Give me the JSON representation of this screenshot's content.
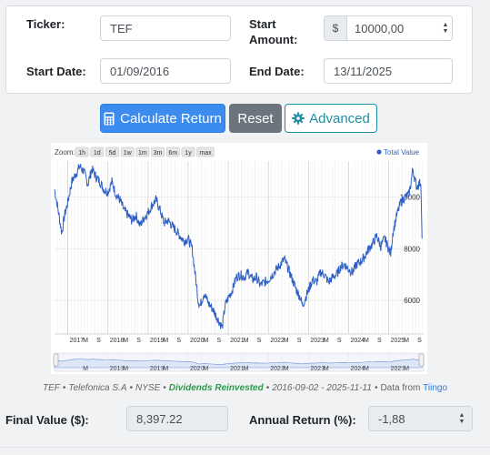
{
  "form": {
    "ticker_label": "Ticker:",
    "ticker_value": "TEF",
    "start_amount_label_line1": "Start",
    "start_amount_label_line2": "Amount:",
    "currency_symbol": "$",
    "start_amount_value": "10000,00",
    "start_date_label": "Start Date:",
    "start_date_value": "01/09/2016",
    "end_date_label": "End Date:",
    "end_date_value": "13/11/2025"
  },
  "buttons": {
    "calculate_label": "Calculate Return",
    "reset_label": "Reset",
    "advanced_label": "Advanced"
  },
  "chart_data": {
    "type": "line",
    "zoom_label": "Zoom:",
    "zoom_options": [
      "1h",
      "1d",
      "5d",
      "1w",
      "1m",
      "3m",
      "6m",
      "1y",
      "max"
    ],
    "legend": "Total Value",
    "legend_color": "#2f5fc4",
    "line_color": "#2f5fc4",
    "y_ticks": [
      6000,
      8000,
      10000
    ],
    "ylim": [
      4700,
      11400
    ],
    "xlim": [
      2016.67,
      2025.87
    ],
    "x_tick_labels": [
      {
        "label": "2017",
        "x": 2017.0,
        "bold": true
      },
      {
        "label": "M",
        "x": 2017.33
      },
      {
        "label": "S",
        "x": 2017.67
      },
      {
        "label": "2018",
        "x": 2018.0,
        "bold": true
      },
      {
        "label": "M",
        "x": 2018.33
      },
      {
        "label": "S",
        "x": 2018.67
      },
      {
        "label": "2019",
        "x": 2019.0,
        "bold": true
      },
      {
        "label": "M",
        "x": 2019.33
      },
      {
        "label": "S",
        "x": 2019.67
      },
      {
        "label": "2020",
        "x": 2020.0,
        "bold": true
      },
      {
        "label": "M",
        "x": 2020.33
      },
      {
        "label": "S",
        "x": 2020.67
      },
      {
        "label": "2021",
        "x": 2021.0,
        "bold": true
      },
      {
        "label": "M",
        "x": 2021.33
      },
      {
        "label": "S",
        "x": 2021.67
      },
      {
        "label": "2022",
        "x": 2022.0,
        "bold": true
      },
      {
        "label": "M",
        "x": 2022.33
      },
      {
        "label": "S",
        "x": 2022.67
      },
      {
        "label": "2023",
        "x": 2023.0,
        "bold": true
      },
      {
        "label": "M",
        "x": 2023.33
      },
      {
        "label": "S",
        "x": 2023.67
      },
      {
        "label": "2024",
        "x": 2024.0,
        "bold": true
      },
      {
        "label": "M",
        "x": 2024.33
      },
      {
        "label": "S",
        "x": 2024.67
      },
      {
        "label": "2025",
        "x": 2025.0,
        "bold": true
      },
      {
        "label": "M",
        "x": 2025.33
      },
      {
        "label": "S",
        "x": 2025.67
      }
    ],
    "navigator_labels": [
      {
        "label": "M",
        "x": 2017.33
      },
      {
        "label": "2018",
        "x": 2018.0
      },
      {
        "label": "M",
        "x": 2018.33
      },
      {
        "label": "2019",
        "x": 2019.0
      },
      {
        "label": "M",
        "x": 2019.33
      },
      {
        "label": "2020",
        "x": 2020.0
      },
      {
        "label": "M",
        "x": 2020.33
      },
      {
        "label": "2021",
        "x": 2021.0
      },
      {
        "label": "M",
        "x": 2021.33
      },
      {
        "label": "2022",
        "x": 2022.0
      },
      {
        "label": "M",
        "x": 2022.33
      },
      {
        "label": "2023",
        "x": 2023.0
      },
      {
        "label": "M",
        "x": 2023.33
      },
      {
        "label": "2024",
        "x": 2024.0
      },
      {
        "label": "M",
        "x": 2024.33
      },
      {
        "label": "2025",
        "x": 2025.0
      },
      {
        "label": "M",
        "x": 2025.33
      }
    ],
    "series": [
      {
        "points": [
          [
            2016.67,
            10300
          ],
          [
            2016.75,
            9600
          ],
          [
            2016.85,
            8600
          ],
          [
            2016.92,
            9300
          ],
          [
            2017.0,
            9800
          ],
          [
            2017.1,
            10600
          ],
          [
            2017.2,
            10900
          ],
          [
            2017.3,
            11200
          ],
          [
            2017.4,
            11000
          ],
          [
            2017.5,
            10500
          ],
          [
            2017.6,
            11100
          ],
          [
            2017.7,
            10800
          ],
          [
            2017.8,
            10600
          ],
          [
            2017.9,
            10300
          ],
          [
            2018.0,
            10200
          ],
          [
            2018.1,
            10600
          ],
          [
            2018.2,
            10100
          ],
          [
            2018.3,
            9900
          ],
          [
            2018.4,
            9500
          ],
          [
            2018.5,
            9300
          ],
          [
            2018.6,
            9100
          ],
          [
            2018.7,
            9300
          ],
          [
            2018.8,
            8900
          ],
          [
            2018.9,
            9200
          ],
          [
            2019.0,
            9400
          ],
          [
            2019.1,
            9700
          ],
          [
            2019.2,
            9900
          ],
          [
            2019.3,
            9500
          ],
          [
            2019.4,
            9000
          ],
          [
            2019.5,
            9100
          ],
          [
            2019.6,
            8900
          ],
          [
            2019.7,
            8700
          ],
          [
            2019.8,
            8500
          ],
          [
            2019.9,
            8300
          ],
          [
            2020.0,
            8400
          ],
          [
            2020.1,
            8000
          ],
          [
            2020.2,
            6700
          ],
          [
            2020.25,
            6000
          ],
          [
            2020.3,
            5800
          ],
          [
            2020.4,
            6300
          ],
          [
            2020.5,
            5900
          ],
          [
            2020.6,
            5700
          ],
          [
            2020.7,
            5400
          ],
          [
            2020.8,
            5100
          ],
          [
            2020.85,
            4950
          ],
          [
            2020.92,
            5800
          ],
          [
            2021.0,
            6100
          ],
          [
            2021.1,
            6400
          ],
          [
            2021.2,
            6900
          ],
          [
            2021.3,
            7000
          ],
          [
            2021.4,
            6900
          ],
          [
            2021.5,
            7100
          ],
          [
            2021.6,
            6800
          ],
          [
            2021.7,
            6900
          ],
          [
            2021.8,
            6600
          ],
          [
            2021.9,
            6700
          ],
          [
            2022.0,
            6800
          ],
          [
            2022.1,
            7000
          ],
          [
            2022.2,
            7200
          ],
          [
            2022.3,
            7400
          ],
          [
            2022.4,
            7600
          ],
          [
            2022.5,
            7200
          ],
          [
            2022.6,
            6800
          ],
          [
            2022.7,
            6400
          ],
          [
            2022.8,
            6100
          ],
          [
            2022.85,
            5800
          ],
          [
            2022.9,
            6000
          ],
          [
            2023.0,
            6400
          ],
          [
            2023.1,
            6800
          ],
          [
            2023.2,
            6700
          ],
          [
            2023.3,
            7100
          ],
          [
            2023.4,
            7000
          ],
          [
            2023.5,
            6700
          ],
          [
            2023.6,
            6900
          ],
          [
            2023.7,
            7000
          ],
          [
            2023.8,
            7300
          ],
          [
            2023.9,
            7400
          ],
          [
            2024.0,
            7200
          ],
          [
            2024.1,
            7100
          ],
          [
            2024.2,
            7400
          ],
          [
            2024.3,
            7500
          ],
          [
            2024.4,
            7700
          ],
          [
            2024.5,
            8000
          ],
          [
            2024.6,
            8200
          ],
          [
            2024.7,
            8500
          ],
          [
            2024.8,
            8100
          ],
          [
            2024.9,
            8400
          ],
          [
            2025.0,
            8000
          ],
          [
            2025.05,
            7800
          ],
          [
            2025.1,
            8600
          ],
          [
            2025.2,
            9300
          ],
          [
            2025.3,
            9800
          ],
          [
            2025.4,
            10000
          ],
          [
            2025.5,
            10100
          ],
          [
            2025.55,
            10500
          ],
          [
            2025.6,
            11100
          ],
          [
            2025.65,
            10700
          ],
          [
            2025.7,
            10400
          ],
          [
            2025.75,
            10500
          ],
          [
            2025.8,
            10600
          ],
          [
            2025.83,
            8400
          ]
        ]
      }
    ]
  },
  "caption": {
    "ticker": "TEF",
    "company": "Telefonica S.A",
    "exchange": "NYSE",
    "dividends": "Dividends Reinvested",
    "date_range": "2016-09-02 - 2025-11-11",
    "data_from": "Data from",
    "source": "Tiingo",
    "separator": "•"
  },
  "results": {
    "final_value_label": "Final Value ($):",
    "final_value": "8,397.22",
    "annual_return_label": "Annual Return (%):",
    "annual_return": "-1,88"
  }
}
